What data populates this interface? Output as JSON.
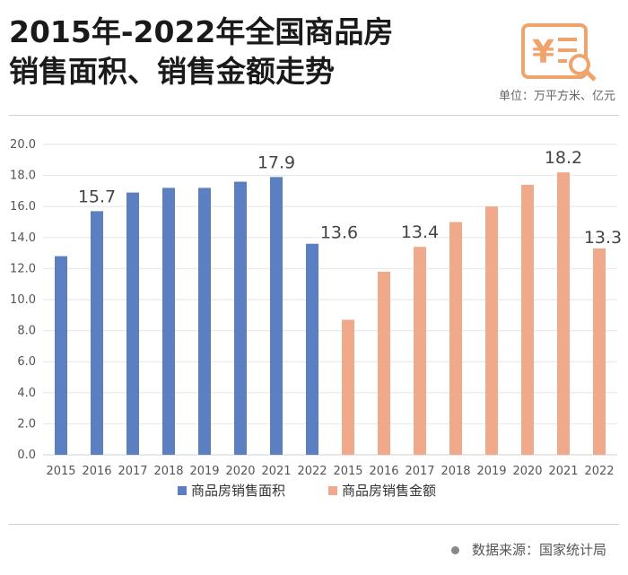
{
  "title_line1": "2015年-2022年全国商品房",
  "title_line2": "销售面积、销售金额走势",
  "unit": "单位：万平方米、亿元",
  "source_label": "数据来源：国家统计局",
  "colors": {
    "area": "#5b7fc1",
    "amount": "#f0a98a",
    "logo": "#f0a46b"
  },
  "chart_data": {
    "type": "bar",
    "title": "2015年-2022年全国商品房销售面积、销售金额走势",
    "ylim": [
      0,
      20
    ],
    "yticks": [
      "0.0",
      "2.0",
      "4.0",
      "6.0",
      "8.0",
      "10.0",
      "12.0",
      "14.0",
      "16.0",
      "18.0",
      "20.0"
    ],
    "categories": [
      "2015",
      "2016",
      "2017",
      "2018",
      "2019",
      "2020",
      "2021",
      "2022"
    ],
    "series": [
      {
        "name": "商品房销售面积",
        "values": [
          12.8,
          15.7,
          16.9,
          17.2,
          17.2,
          17.6,
          17.9,
          13.6
        ],
        "data_labels": [
          "",
          "15.7",
          "",
          "",
          "",
          "",
          "17.9",
          "13.6"
        ]
      },
      {
        "name": "商品房销售金额",
        "values": [
          8.7,
          11.8,
          13.4,
          15.0,
          16.0,
          17.4,
          18.2,
          13.3
        ],
        "data_labels": [
          "",
          "",
          "13.4",
          "",
          "",
          "",
          "18.2",
          "13.3"
        ]
      }
    ]
  }
}
